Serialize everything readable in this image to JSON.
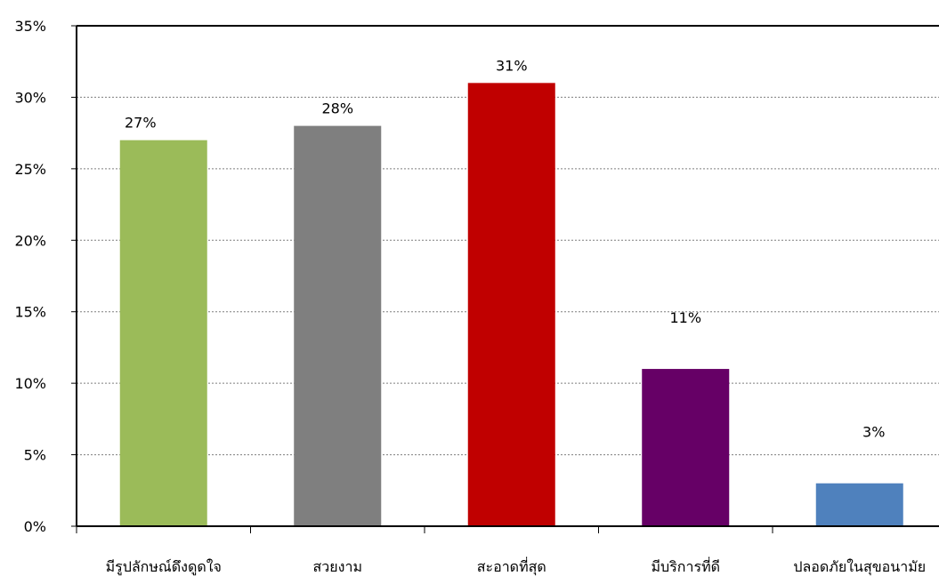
{
  "chart_data": {
    "type": "bar",
    "title": "",
    "xlabel": "",
    "ylabel": "",
    "categories": [
      "มีรูปลักษณ์ดึงดูดใจ",
      "สวยงาม",
      "สะอาดที่สุด",
      "มีบริการที่ดี",
      "ปลอดภัยในสุขอนามัย"
    ],
    "values": [
      27,
      28,
      31,
      11,
      3
    ],
    "data_labels": [
      "27%",
      "28%",
      "31%",
      "11%",
      "3%"
    ],
    "colors": [
      "#9BBB59",
      "#7F7F7F",
      "#C00000",
      "#660066",
      "#4F81BD"
    ],
    "ylim": [
      0,
      35
    ],
    "yticks": [
      0,
      5,
      10,
      15,
      20,
      25,
      30,
      35
    ],
    "ytick_labels": [
      "0%",
      "5%",
      "10%",
      "15%",
      "20%",
      "25%",
      "30%",
      "35%"
    ],
    "grid": true,
    "legend": "none"
  }
}
